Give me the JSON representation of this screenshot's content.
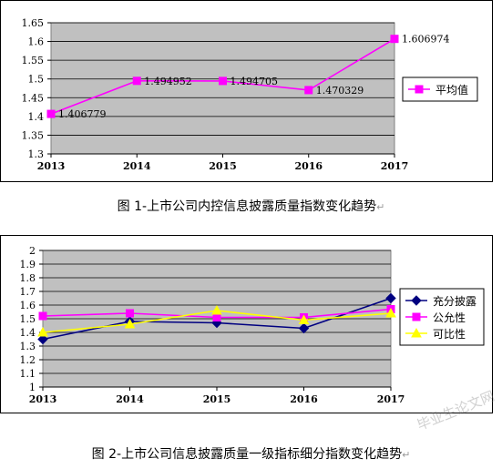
{
  "chart_data": [
    {
      "type": "line",
      "categories": [
        "2013",
        "2014",
        "2015",
        "2016",
        "2017"
      ],
      "series": [
        {
          "name": "平均值",
          "values": [
            1.406779,
            1.494952,
            1.494705,
            1.470329,
            1.606974
          ],
          "color": "#ff00ff",
          "marker": "square"
        }
      ],
      "data_labels": [
        "1.406779",
        "1.494952",
        "1.494705",
        "1.470329",
        "1.606974"
      ],
      "y_ticks": [
        "1.3",
        "1.35",
        "1.4",
        "1.45",
        "1.5",
        "1.55",
        "1.6",
        "1.65"
      ],
      "ylim": [
        1.3,
        1.65
      ],
      "grid": true,
      "plot_background": "#c0c0c0",
      "legend_position": "right"
    },
    {
      "type": "line",
      "categories": [
        "2013",
        "2014",
        "2015",
        "2016",
        "2017"
      ],
      "series": [
        {
          "name": "充分披露",
          "values": [
            1.35,
            1.48,
            1.47,
            1.43,
            1.65
          ],
          "color": "#000080",
          "marker": "diamond"
        },
        {
          "name": "公允性",
          "values": [
            1.52,
            1.54,
            1.51,
            1.51,
            1.57
          ],
          "color": "#ff00ff",
          "marker": "square"
        },
        {
          "name": "可比性",
          "values": [
            1.4,
            1.46,
            1.56,
            1.49,
            1.54
          ],
          "color": "#ffff00",
          "marker": "triangle"
        }
      ],
      "y_ticks": [
        "1",
        "1.1",
        "1.2",
        "1.3",
        "1.4",
        "1.5",
        "1.6",
        "1.7",
        "1.8",
        "1.9",
        "2"
      ],
      "ylim": [
        1,
        2
      ],
      "grid": true,
      "plot_background": "#c0c0c0",
      "legend_position": "right"
    }
  ],
  "captions": {
    "chart1": "图 1-上市公司内控信息披露质量指数变化趋势",
    "chart2": "图 2-上市公司信息披露质量一级指标细分指数变化趋势",
    "paragraph_mark": "↵"
  },
  "watermark": "毕业生论文网"
}
